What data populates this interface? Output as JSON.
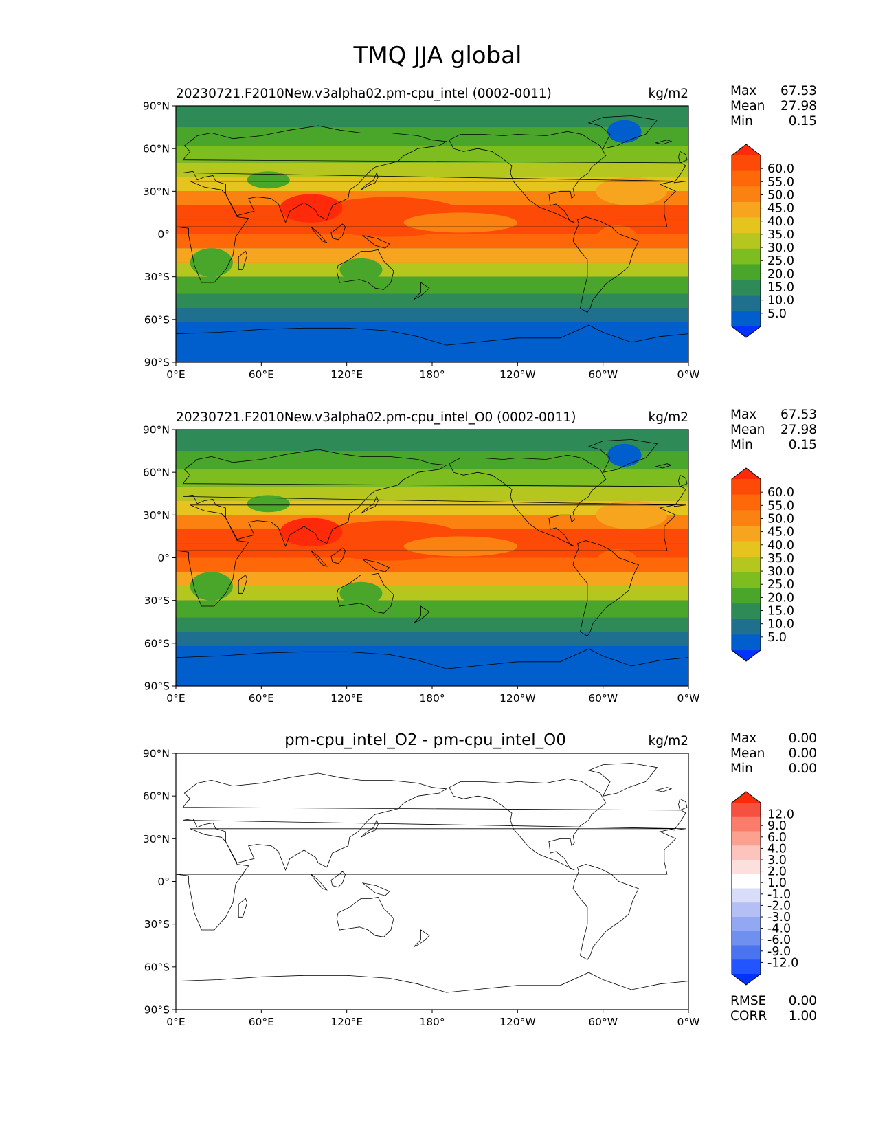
{
  "figure": {
    "title": "TMQ JJA global"
  },
  "x_ticks": [
    "0°E",
    "60°E",
    "120°E",
    "180°",
    "120°W",
    "60°W",
    "0°W"
  ],
  "y_ticks": [
    "90°N",
    "60°N",
    "30°N",
    "0°",
    "30°S",
    "60°S",
    "90°S"
  ],
  "panels": [
    {
      "title": "20230721.F2010New.v3alpha02.pm-cpu_intel (0002-0011)",
      "units": "kg/m2",
      "stats": [
        {
          "label": "Max",
          "value": "67.53"
        },
        {
          "label": "Mean",
          "value": "27.98"
        },
        {
          "label": "Min",
          "value": "0.15"
        }
      ],
      "colorbar_labels": [
        "60.0",
        "55.0",
        "50.0",
        "45.0",
        "40.0",
        "35.0",
        "30.0",
        "25.0",
        "20.0",
        "15.0",
        "10.0",
        "5.0"
      ],
      "field": "tmq"
    },
    {
      "title": "20230721.F2010New.v3alpha02.pm-cpu_intel_O0 (0002-0011)",
      "units": "kg/m2",
      "stats": [
        {
          "label": "Max",
          "value": "67.53"
        },
        {
          "label": "Mean",
          "value": "27.98"
        },
        {
          "label": "Min",
          "value": "0.15"
        }
      ],
      "colorbar_labels": [
        "60.0",
        "55.0",
        "50.0",
        "45.0",
        "40.0",
        "35.0",
        "30.0",
        "25.0",
        "20.0",
        "15.0",
        "10.0",
        "5.0"
      ],
      "field": "tmq"
    },
    {
      "title": "pm-cpu_intel_O2 - pm-cpu_intel_O0",
      "units": "kg/m2",
      "stats": [
        {
          "label": "Max",
          "value": "0.00"
        },
        {
          "label": "Mean",
          "value": "0.00"
        },
        {
          "label": "Min",
          "value": "0.00"
        }
      ],
      "colorbar_labels": [
        "12.0",
        "9.0",
        "6.0",
        "4.0",
        "3.0",
        "2.0",
        "1.0",
        "-1.0",
        "-2.0",
        "-3.0",
        "-4.0",
        "-6.0",
        "-9.0",
        "-12.0"
      ],
      "extra_stats": [
        {
          "label": "RMSE",
          "value": "0.00"
        },
        {
          "label": "CORR",
          "value": "1.00"
        }
      ],
      "field": "diff"
    }
  ],
  "colors": {
    "tmq_levels": [
      "#0033ff",
      "#005fcc",
      "#1f6f8f",
      "#2e8b57",
      "#4aa62a",
      "#7dbd1f",
      "#b5c71e",
      "#e6c41e",
      "#f7a51e",
      "#fb8110",
      "#fe6808",
      "#fd4a06",
      "#ff2a0a"
    ],
    "diff_levels": [
      "#0033ff",
      "#2255ff",
      "#4a73f0",
      "#7090f0",
      "#92a8f2",
      "#b4c0f5",
      "#d8ddfa",
      "#ffffff",
      "#fde0dd",
      "#fcc4bd",
      "#fca090",
      "#fb7c6a",
      "#f65040",
      "#ff2a0a"
    ],
    "axes_bg": "#1f6f8f"
  }
}
